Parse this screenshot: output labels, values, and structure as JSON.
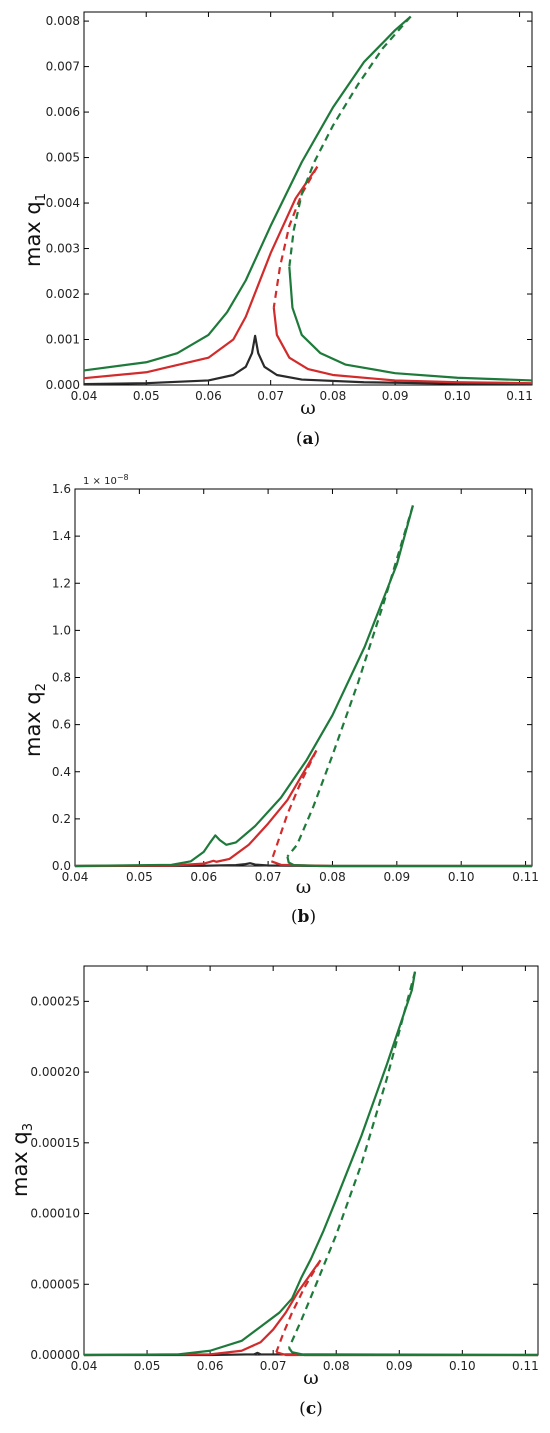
{
  "chart_data": [
    {
      "type": "line",
      "panel": "a",
      "caption_letter": "a",
      "xlabel": "ω",
      "ylabel": "max q",
      "ylabel_sub": "1",
      "offset_text": "",
      "xlim": [
        0.04,
        0.112
      ],
      "ylim": [
        0,
        0.0082
      ],
      "xticks": [
        0.04,
        0.05,
        0.06,
        0.07,
        0.08,
        0.09,
        0.1,
        0.11
      ],
      "xtick_labels": [
        "0.04",
        "0.05",
        "0.06",
        "0.07",
        "0.08",
        "0.09",
        "0.10",
        "0.11"
      ],
      "yticks": [
        0,
        0.001,
        0.002,
        0.003,
        0.004,
        0.005,
        0.006,
        0.007,
        0.008
      ],
      "ytick_labels": [
        "0.000",
        "0.001",
        "0.002",
        "0.003",
        "0.004",
        "0.005",
        "0.006",
        "0.007",
        "0.008"
      ],
      "grid": false,
      "series": [
        {
          "color": "#2a2a2a",
          "style": "solid",
          "x": [
            0.04,
            0.05,
            0.06,
            0.064,
            0.066,
            0.067,
            0.0675,
            0.068,
            0.069,
            0.071,
            0.075,
            0.085,
            0.1,
            0.112
          ],
          "y": [
            2e-05,
            4e-05,
            0.0001,
            0.00022,
            0.0004,
            0.0007,
            0.00108,
            0.0007,
            0.0004,
            0.00022,
            0.00012,
            6e-05,
            3e-05,
            2e-05
          ]
        },
        {
          "color": "#d22b2b",
          "style": "solid",
          "x": [
            0.04,
            0.05,
            0.06,
            0.064,
            0.066,
            0.068,
            0.07,
            0.072,
            0.074,
            0.0775
          ],
          "y": [
            0.00015,
            0.00028,
            0.0006,
            0.001,
            0.0015,
            0.0022,
            0.0029,
            0.0035,
            0.0041,
            0.0048
          ]
        },
        {
          "color": "#d22b2b",
          "style": "dashed",
          "x": [
            0.0775,
            0.075,
            0.073,
            0.0715,
            0.0705
          ],
          "y": [
            0.0048,
            0.0042,
            0.0035,
            0.0026,
            0.0017
          ]
        },
        {
          "color": "#d22b2b",
          "style": "solid",
          "x": [
            0.0705,
            0.071,
            0.073,
            0.076,
            0.08,
            0.09,
            0.1,
            0.112
          ],
          "y": [
            0.0017,
            0.0011,
            0.0006,
            0.00035,
            0.00022,
            0.0001,
            6e-05,
            4e-05
          ]
        },
        {
          "color": "#1e7a3a",
          "style": "solid",
          "x": [
            0.04,
            0.05,
            0.055,
            0.06,
            0.063,
            0.066,
            0.068,
            0.07,
            0.075,
            0.08,
            0.085,
            0.09,
            0.0925
          ],
          "y": [
            0.00032,
            0.0005,
            0.0007,
            0.0011,
            0.0016,
            0.0023,
            0.0029,
            0.0035,
            0.0049,
            0.0061,
            0.0071,
            0.0078,
            0.0081
          ]
        },
        {
          "color": "#1e7a3a",
          "style": "dashed",
          "x": [
            0.0925,
            0.088,
            0.084,
            0.08,
            0.077,
            0.075,
            0.0737,
            0.073
          ],
          "y": [
            0.0081,
            0.0074,
            0.0066,
            0.0057,
            0.0049,
            0.0042,
            0.0034,
            0.0026
          ]
        },
        {
          "color": "#1e7a3a",
          "style": "solid",
          "x": [
            0.073,
            0.0735,
            0.075,
            0.078,
            0.082,
            0.09,
            0.1,
            0.112
          ],
          "y": [
            0.0026,
            0.0017,
            0.0011,
            0.0007,
            0.00045,
            0.00026,
            0.00016,
            0.0001
          ]
        }
      ]
    },
    {
      "type": "line",
      "panel": "b",
      "caption_letter": "b",
      "xlabel": "ω",
      "ylabel": "max q",
      "ylabel_sub": "2",
      "offset_text": "1 × 10",
      "offset_exp": "−8",
      "xlim": [
        0.04,
        0.111
      ],
      "ylim": [
        0,
        1.6
      ],
      "xticks": [
        0.04,
        0.05,
        0.06,
        0.07,
        0.08,
        0.09,
        0.1,
        0.11
      ],
      "xtick_labels": [
        "0.04",
        "0.05",
        "0.06",
        "0.07",
        "0.08",
        "0.09",
        "0.10",
        "0.11"
      ],
      "yticks": [
        0,
        0.2,
        0.4,
        0.6,
        0.8,
        1.0,
        1.2,
        1.4,
        1.6
      ],
      "ytick_labels": [
        "0.0",
        "0.2",
        "0.4",
        "0.6",
        "0.8",
        "1.0",
        "1.2",
        "1.4",
        "1.6"
      ],
      "grid": false,
      "series": [
        {
          "color": "#2a2a2a",
          "style": "solid",
          "x": [
            0.04,
            0.06,
            0.065,
            0.0665,
            0.0672,
            0.068,
            0.07,
            0.08,
            0.111
          ],
          "y": [
            0,
            0.001,
            0.004,
            0.008,
            0.012,
            0.006,
            0.002,
            0,
            0
          ]
        },
        {
          "color": "#d22b2b",
          "style": "solid",
          "x": [
            0.04,
            0.055,
            0.06,
            0.061,
            0.0615,
            0.062,
            0.064,
            0.067,
            0.07,
            0.073,
            0.0775
          ],
          "y": [
            0,
            0.002,
            0.01,
            0.018,
            0.022,
            0.018,
            0.03,
            0.09,
            0.18,
            0.28,
            0.49
          ]
        },
        {
          "color": "#d22b2b",
          "style": "dashed",
          "x": [
            0.0775,
            0.075,
            0.073,
            0.0715,
            0.0705
          ],
          "y": [
            0.49,
            0.35,
            0.22,
            0.1,
            0.02
          ]
        },
        {
          "color": "#d22b2b",
          "style": "solid",
          "x": [
            0.0705,
            0.072,
            0.08,
            0.111
          ],
          "y": [
            0.02,
            0.005,
            0,
            0
          ]
        },
        {
          "color": "#1e7a3a",
          "style": "solid",
          "x": [
            0.04,
            0.055,
            0.058,
            0.06,
            0.061,
            0.0618,
            0.0625,
            0.0635,
            0.065,
            0.068,
            0.072,
            0.076,
            0.08,
            0.085,
            0.09,
            0.0925
          ],
          "y": [
            0,
            0.005,
            0.02,
            0.06,
            0.1,
            0.13,
            0.11,
            0.09,
            0.1,
            0.17,
            0.29,
            0.45,
            0.64,
            0.93,
            1.28,
            1.53
          ]
        },
        {
          "color": "#1e7a3a",
          "style": "dashed",
          "x": [
            0.0925,
            0.088,
            0.084,
            0.08,
            0.077,
            0.0745,
            0.073
          ],
          "y": [
            1.53,
            1.12,
            0.78,
            0.47,
            0.25,
            0.09,
            0.04
          ]
        },
        {
          "color": "#1e7a3a",
          "style": "solid",
          "x": [
            0.073,
            0.0732,
            0.074,
            0.078,
            0.111
          ],
          "y": [
            0.04,
            0.015,
            0.004,
            0,
            0
          ]
        }
      ]
    },
    {
      "type": "line",
      "panel": "c",
      "caption_letter": "c",
      "xlabel": "ω",
      "ylabel": "max q",
      "ylabel_sub": "3",
      "offset_text": "",
      "xlim": [
        0.04,
        0.112
      ],
      "ylim": [
        0,
        0.000275
      ],
      "xticks": [
        0.04,
        0.05,
        0.06,
        0.07,
        0.08,
        0.09,
        0.1,
        0.11
      ],
      "xtick_labels": [
        "0.04",
        "0.05",
        "0.06",
        "0.07",
        "0.08",
        "0.09",
        "0.10",
        "0.11"
      ],
      "yticks": [
        0,
        5e-05,
        0.0001,
        0.00015,
        0.0002,
        0.00025
      ],
      "ytick_labels": [
        "0.00000",
        "0.00005",
        "0.00010",
        "0.00015",
        "0.00020",
        "0.00025"
      ],
      "grid": false,
      "series": [
        {
          "color": "#2a2a2a",
          "style": "solid",
          "x": [
            0.04,
            0.06,
            0.067,
            0.0675,
            0.068,
            0.112
          ],
          "y": [
            0,
            0,
            5e-07,
            1.5e-06,
            5e-07,
            0
          ]
        },
        {
          "color": "#d22b2b",
          "style": "solid",
          "x": [
            0.04,
            0.06,
            0.065,
            0.068,
            0.07,
            0.072,
            0.074,
            0.0775
          ],
          "y": [
            0,
            5e-07,
            3e-06,
            9e-06,
            1.8e-05,
            3e-05,
            4.5e-05,
            6.7e-05
          ]
        },
        {
          "color": "#d22b2b",
          "style": "dashed",
          "x": [
            0.0775,
            0.075,
            0.073,
            0.0715,
            0.0705
          ],
          "y": [
            6.7e-05,
            4.8e-05,
            3e-05,
            1.4e-05,
            2e-06
          ]
        },
        {
          "color": "#d22b2b",
          "style": "solid",
          "x": [
            0.0705,
            0.072,
            0.112
          ],
          "y": [
            2e-06,
            0,
            0
          ]
        },
        {
          "color": "#1e7a3a",
          "style": "solid",
          "x": [
            0.04,
            0.055,
            0.06,
            0.065,
            0.068,
            0.071,
            0.073,
            0.0745,
            0.076,
            0.078,
            0.08,
            0.084,
            0.088,
            0.092,
            0.0925
          ],
          "y": [
            0,
            5e-07,
            3e-06,
            1e-05,
            2e-05,
            3e-05,
            4e-05,
            5.5e-05,
            6.8e-05,
            8.8e-05,
            0.00011,
            0.000155,
            0.000205,
            0.000258,
            0.000271
          ]
        },
        {
          "color": "#1e7a3a",
          "style": "dashed",
          "x": [
            0.0925,
            0.088,
            0.084,
            0.08,
            0.077,
            0.0745,
            0.0725
          ],
          "y": [
            0.000271,
            0.000195,
            0.000135,
            8.5e-05,
            5.2e-05,
            2.5e-05,
            5e-06
          ]
        },
        {
          "color": "#1e7a3a",
          "style": "solid",
          "x": [
            0.0725,
            0.073,
            0.075,
            0.112
          ],
          "y": [
            5e-06,
            2e-06,
            0,
            0
          ]
        }
      ]
    }
  ]
}
